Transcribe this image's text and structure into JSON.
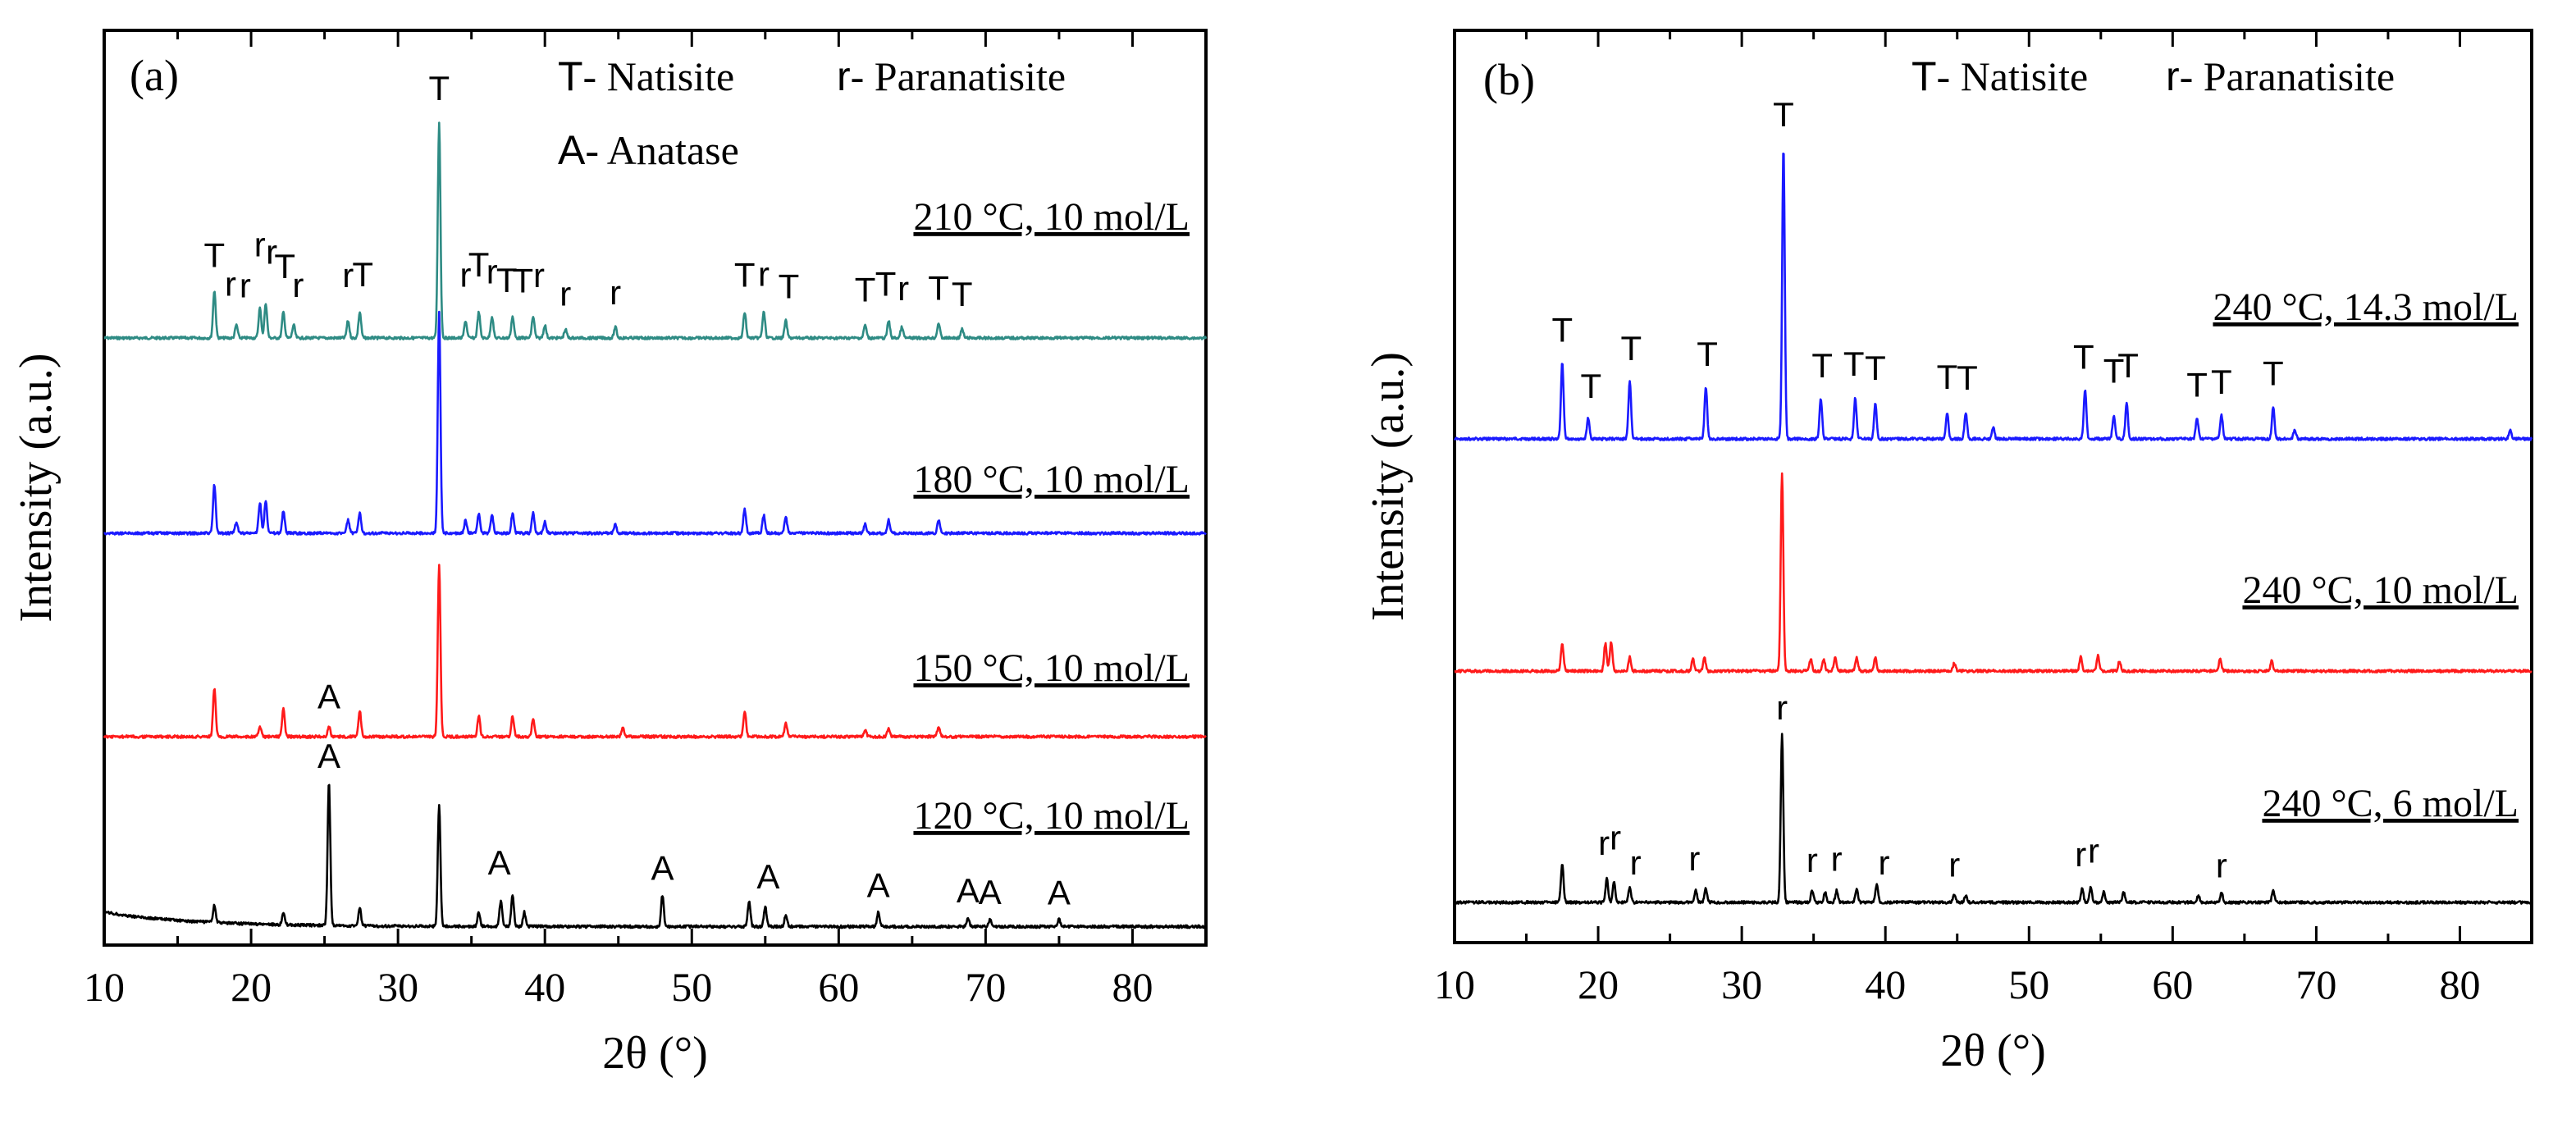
{
  "chart_data": [
    {
      "type": "line",
      "panel_label": "(a)",
      "xlabel": "2θ (°)",
      "ylabel": "Intensity (a.u.)",
      "xlim": [
        10,
        85
      ],
      "xticks": [
        10,
        20,
        30,
        40,
        50,
        60,
        70,
        80
      ],
      "legend": [
        {
          "symbol": "T",
          "text": "- Natisite"
        },
        {
          "symbol": "r",
          "text": "- Paranatisite"
        },
        {
          "symbol": "A",
          "text": "- Anatase"
        }
      ],
      "series": [
        {
          "name": "210 °C, 10 mol/L",
          "color": "#2e8b84",
          "peaks": [
            [
              17.5,
              0.22
            ],
            [
              19.0,
              0.06
            ],
            [
              20.6,
              0.14
            ],
            [
              21.0,
              0.16
            ],
            [
              22.2,
              0.12
            ],
            [
              22.9,
              0.06
            ],
            [
              26.6,
              0.08
            ],
            [
              27.4,
              0.12
            ],
            [
              32.8,
              1.0
            ],
            [
              34.6,
              0.08
            ],
            [
              35.5,
              0.12
            ],
            [
              36.4,
              0.1
            ],
            [
              37.8,
              0.1
            ],
            [
              39.2,
              0.1
            ],
            [
              40.0,
              0.06
            ],
            [
              41.4,
              0.04
            ],
            [
              44.8,
              0.05
            ],
            [
              53.6,
              0.12
            ],
            [
              54.9,
              0.12
            ],
            [
              56.4,
              0.08
            ],
            [
              61.8,
              0.06
            ],
            [
              63.4,
              0.08
            ],
            [
              64.3,
              0.05
            ],
            [
              66.8,
              0.07
            ],
            [
              68.4,
              0.04
            ]
          ],
          "labels": [
            {
              "text": "T",
              "x": 17.5
            },
            {
              "text": "r",
              "x": 18.6
            },
            {
              "text": "r",
              "x": 19.6
            },
            {
              "text": "r",
              "x": 20.6
            },
            {
              "text": "r",
              "x": 21.4
            },
            {
              "text": "T",
              "x": 22.3
            },
            {
              "text": "r",
              "x": 23.2
            },
            {
              "text": "r",
              "x": 26.6
            },
            {
              "text": "T",
              "x": 27.6
            },
            {
              "text": "T",
              "x": 32.8
            },
            {
              "text": "r",
              "x": 34.6
            },
            {
              "text": "T",
              "x": 35.5
            },
            {
              "text": "r",
              "x": 36.4
            },
            {
              "text": "T",
              "x": 37.4
            },
            {
              "text": "T",
              "x": 38.5
            },
            {
              "text": "r",
              "x": 39.6
            },
            {
              "text": "r",
              "x": 41.4
            },
            {
              "text": "r",
              "x": 44.8
            },
            {
              "text": "T",
              "x": 53.6
            },
            {
              "text": "r",
              "x": 54.9
            },
            {
              "text": "T",
              "x": 56.6
            },
            {
              "text": "T",
              "x": 61.8
            },
            {
              "text": "T",
              "x": 63.2
            },
            {
              "text": "r",
              "x": 64.4
            },
            {
              "text": "T",
              "x": 66.8
            },
            {
              "text": "T",
              "x": 68.4
            }
          ]
        },
        {
          "name": "180 °C, 10 mol/L",
          "color": "#1a1aff",
          "peaks": [
            [
              17.5,
              0.22
            ],
            [
              19.0,
              0.05
            ],
            [
              20.6,
              0.14
            ],
            [
              21.0,
              0.15
            ],
            [
              22.2,
              0.1
            ],
            [
              26.6,
              0.06
            ],
            [
              27.4,
              0.09
            ],
            [
              32.8,
              1.0
            ],
            [
              34.6,
              0.06
            ],
            [
              35.5,
              0.09
            ],
            [
              36.4,
              0.08
            ],
            [
              37.8,
              0.09
            ],
            [
              39.2,
              0.09
            ],
            [
              40.0,
              0.05
            ],
            [
              44.8,
              0.04
            ],
            [
              53.6,
              0.11
            ],
            [
              54.9,
              0.08
            ],
            [
              56.4,
              0.07
            ],
            [
              61.8,
              0.04
            ],
            [
              63.4,
              0.06
            ],
            [
              66.8,
              0.06
            ]
          ],
          "labels": []
        },
        {
          "name": "150 °C, 10 mol/L",
          "color": "#ff1a1a",
          "peaks": [
            [
              17.5,
              0.28
            ],
            [
              20.6,
              0.06
            ],
            [
              22.2,
              0.16
            ],
            [
              25.3,
              0.06
            ],
            [
              27.4,
              0.15
            ],
            [
              32.8,
              1.0
            ],
            [
              35.5,
              0.12
            ],
            [
              37.8,
              0.12
            ],
            [
              39.2,
              0.1
            ],
            [
              45.3,
              0.05
            ],
            [
              53.6,
              0.15
            ],
            [
              56.4,
              0.08
            ],
            [
              61.8,
              0.04
            ],
            [
              63.4,
              0.05
            ],
            [
              66.8,
              0.06
            ]
          ],
          "labels": [
            {
              "text": "A",
              "x": 25.3
            }
          ]
        },
        {
          "name": "120 °C, 10 mol/L",
          "color": "#000000",
          "peaks": [
            [
              17.5,
              0.12
            ],
            [
              22.2,
              0.08
            ],
            [
              25.3,
              1.0
            ],
            [
              27.4,
              0.12
            ],
            [
              32.8,
              0.85
            ],
            [
              35.5,
              0.1
            ],
            [
              37.0,
              0.18
            ],
            [
              37.8,
              0.22
            ],
            [
              38.6,
              0.1
            ],
            [
              48.0,
              0.22
            ],
            [
              53.9,
              0.18
            ],
            [
              55.0,
              0.14
            ],
            [
              56.4,
              0.08
            ],
            [
              62.7,
              0.1
            ],
            [
              68.8,
              0.06
            ],
            [
              70.3,
              0.05
            ],
            [
              75.0,
              0.05
            ]
          ],
          "labels": [
            {
              "text": "A",
              "x": 25.3
            },
            {
              "text": "A",
              "x": 36.9
            },
            {
              "text": "A",
              "x": 48.0
            },
            {
              "text": "A",
              "x": 55.2
            },
            {
              "text": "A",
              "x": 62.7
            },
            {
              "text": "A",
              "x": 68.8
            },
            {
              "text": "A",
              "x": 70.3
            },
            {
              "text": "A",
              "x": 75.0
            }
          ]
        }
      ]
    },
    {
      "type": "line",
      "panel_label": "(b)",
      "xlabel": "2θ (°)",
      "ylabel": "Intensity (a.u.)",
      "xlim": [
        10,
        85
      ],
      "xticks": [
        10,
        20,
        30,
        40,
        50,
        60,
        70,
        80
      ],
      "legend": [
        {
          "symbol": "T",
          "text": "- Natisite"
        },
        {
          "symbol": "r",
          "text": "- Paranatisite"
        }
      ],
      "series": [
        {
          "name": "240 °C, 14.3 mol/L",
          "color": "#1a1aff",
          "peaks": [
            [
              17.5,
              0.26
            ],
            [
              19.3,
              0.07
            ],
            [
              22.2,
              0.2
            ],
            [
              27.5,
              0.18
            ],
            [
              32.9,
              1.0
            ],
            [
              35.5,
              0.14
            ],
            [
              37.9,
              0.14
            ],
            [
              39.3,
              0.12
            ],
            [
              44.3,
              0.09
            ],
            [
              45.6,
              0.09
            ],
            [
              47.5,
              0.04
            ],
            [
              53.9,
              0.17
            ],
            [
              55.9,
              0.08
            ],
            [
              56.8,
              0.12
            ],
            [
              61.7,
              0.07
            ],
            [
              63.4,
              0.08
            ],
            [
              67.0,
              0.11
            ],
            [
              68.5,
              0.03
            ],
            [
              83.5,
              0.03
            ]
          ],
          "labels": [
            {
              "text": "T",
              "x": 17.5
            },
            {
              "text": "T",
              "x": 19.5
            },
            {
              "text": "T",
              "x": 22.3
            },
            {
              "text": "T",
              "x": 27.6
            },
            {
              "text": "T",
              "x": 32.9
            },
            {
              "text": "T",
              "x": 35.6
            },
            {
              "text": "T",
              "x": 37.8
            },
            {
              "text": "T",
              "x": 39.3
            },
            {
              "text": "T",
              "x": 44.3
            },
            {
              "text": "T",
              "x": 45.7
            },
            {
              "text": "T",
              "x": 53.8
            },
            {
              "text": "T",
              "x": 55.9
            },
            {
              "text": "T",
              "x": 56.9
            },
            {
              "text": "T",
              "x": 61.7
            },
            {
              "text": "T",
              "x": 63.4
            },
            {
              "text": "T",
              "x": 67.0
            }
          ]
        },
        {
          "name": "240 °C, 10 mol/L",
          "color": "#ff1a1a",
          "peaks": [
            [
              17.5,
              0.14
            ],
            [
              20.5,
              0.14
            ],
            [
              20.9,
              0.15
            ],
            [
              22.2,
              0.07
            ],
            [
              26.6,
              0.06
            ],
            [
              27.4,
              0.07
            ],
            [
              32.8,
              1.0
            ],
            [
              34.8,
              0.06
            ],
            [
              35.7,
              0.06
            ],
            [
              36.5,
              0.07
            ],
            [
              38.0,
              0.07
            ],
            [
              39.3,
              0.07
            ],
            [
              44.8,
              0.04
            ],
            [
              53.6,
              0.07
            ],
            [
              54.8,
              0.08
            ],
            [
              56.3,
              0.05
            ],
            [
              63.3,
              0.06
            ],
            [
              66.9,
              0.05
            ]
          ],
          "labels": []
        },
        {
          "name": "240 °C, 6 mol/L",
          "color": "#000000",
          "peaks": [
            [
              17.5,
              0.22
            ],
            [
              20.6,
              0.14
            ],
            [
              21.1,
              0.12
            ],
            [
              22.2,
              0.09
            ],
            [
              26.8,
              0.07
            ],
            [
              27.5,
              0.08
            ],
            [
              32.8,
              1.0
            ],
            [
              34.9,
              0.07
            ],
            [
              35.8,
              0.06
            ],
            [
              36.6,
              0.07
            ],
            [
              38.0,
              0.08
            ],
            [
              39.4,
              0.11
            ],
            [
              44.8,
              0.05
            ],
            [
              45.6,
              0.04
            ],
            [
              53.7,
              0.08
            ],
            [
              54.3,
              0.09
            ],
            [
              55.2,
              0.06
            ],
            [
              56.6,
              0.06
            ],
            [
              61.8,
              0.04
            ],
            [
              63.4,
              0.06
            ],
            [
              67.0,
              0.07
            ]
          ],
          "labels": [
            {
              "text": "r",
              "x": 32.8
            },
            {
              "text": "r",
              "x": 20.4
            },
            {
              "text": "r",
              "x": 21.2
            },
            {
              "text": "r",
              "x": 22.6
            },
            {
              "text": "r",
              "x": 26.7
            },
            {
              "text": "r",
              "x": 34.9
            },
            {
              "text": "r",
              "x": 36.6
            },
            {
              "text": "r",
              "x": 39.9
            },
            {
              "text": "r",
              "x": 44.8
            },
            {
              "text": "r",
              "x": 53.6
            },
            {
              "text": "r",
              "x": 54.5
            },
            {
              "text": "r",
              "x": 63.4
            }
          ]
        }
      ]
    }
  ]
}
